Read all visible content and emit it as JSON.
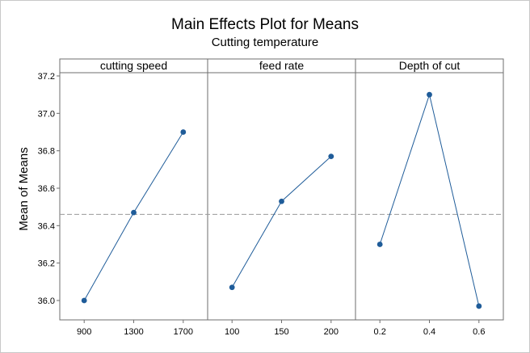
{
  "chart_data": {
    "type": "line",
    "title": "Main Effects Plot for Means",
    "subtitle": "Cutting temperature",
    "ylabel": "Mean of Means",
    "ylim": [
      35.9,
      37.22
    ],
    "yticks": [
      36.0,
      36.2,
      36.4,
      36.6,
      36.8,
      37.0,
      37.2
    ],
    "ytick_labels": [
      "36.0",
      "36.2",
      "36.4",
      "36.6",
      "36.8",
      "37.0",
      "37.2"
    ],
    "reference_line": 36.46,
    "grid": false,
    "panels": [
      {
        "name": "cutting speed",
        "categories": [
          "900",
          "1300",
          "1700"
        ],
        "values": [
          36.0,
          36.47,
          36.9
        ]
      },
      {
        "name": "feed rate",
        "categories": [
          "100",
          "150",
          "200"
        ],
        "values": [
          36.07,
          36.53,
          36.77
        ]
      },
      {
        "name": "Depth of cut",
        "categories": [
          "0.2",
          "0.4",
          "0.6"
        ],
        "values": [
          36.3,
          37.1,
          35.97
        ]
      }
    ],
    "colors": {
      "series": "#1f5c99",
      "marker": "#1f5c99",
      "reference": "#9a9a9a",
      "axis": "#6e6e6e"
    }
  }
}
